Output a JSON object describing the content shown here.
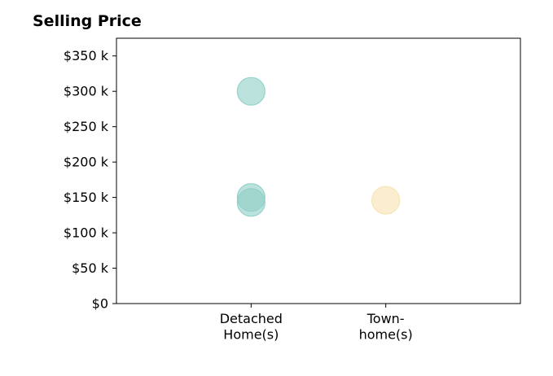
{
  "chart_data": {
    "type": "scatter",
    "title": "Selling Price",
    "xlabel": "",
    "ylabel": "",
    "categories": [
      [
        "Detached",
        "Home(s)"
      ],
      [
        "Town-",
        "home(s)"
      ]
    ],
    "ylim": [
      0,
      375000
    ],
    "yticks": [
      0,
      50000,
      100000,
      150000,
      200000,
      250000,
      300000,
      350000
    ],
    "ytick_labels": [
      "$0",
      "$50 k",
      "$100 k",
      "$150 k",
      "$200 k",
      "$250 k",
      "$300 k",
      "$350 k"
    ],
    "grid": false,
    "points": [
      {
        "category": 0,
        "y": 300000,
        "color": "#8fcfc6"
      },
      {
        "category": 0,
        "y": 150000,
        "color": "#8fcfc6"
      },
      {
        "category": 0,
        "y": 143000,
        "color": "#8fcfc6"
      },
      {
        "category": 1,
        "y": 146000,
        "color": "#f6e1b0"
      }
    ]
  }
}
